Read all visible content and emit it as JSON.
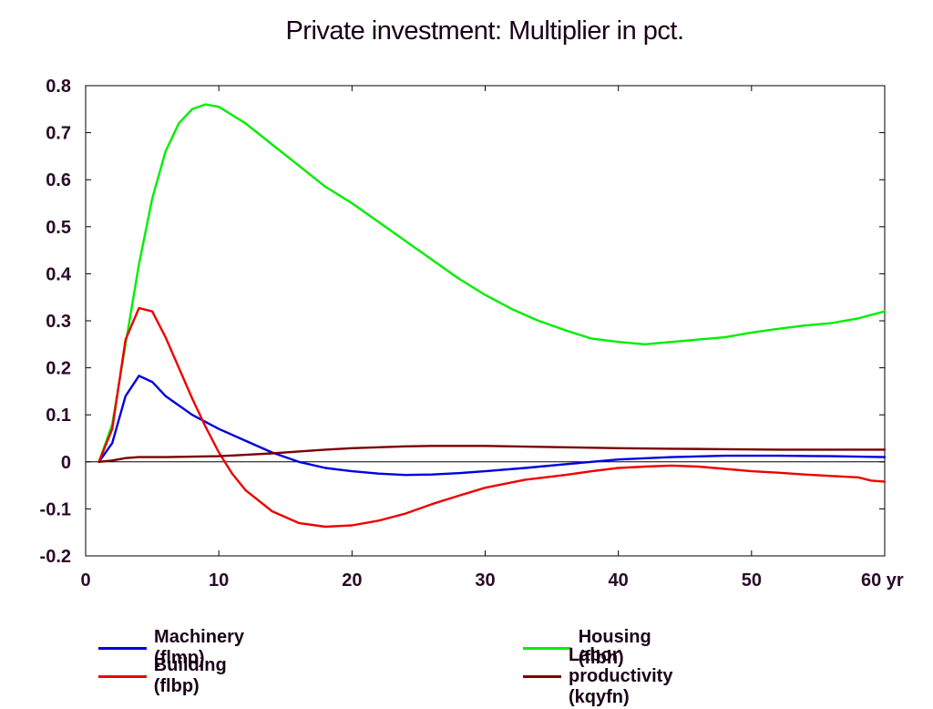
{
  "chart_data": {
    "type": "line",
    "title": "Private investment: Multiplier in pct.",
    "xlabel": "",
    "ylabel": "",
    "x_unit_label": "yr",
    "xlim": [
      0,
      60
    ],
    "ylim": [
      -0.2,
      0.8
    ],
    "x_ticks": [
      0,
      10,
      20,
      30,
      40,
      50,
      60
    ],
    "x_tick_labels": [
      "0",
      "10",
      "20",
      "30",
      "40",
      "50",
      "60 yr"
    ],
    "y_ticks": [
      -0.2,
      -0.1,
      0,
      0.1,
      0.2,
      0.3,
      0.4,
      0.5,
      0.6,
      0.7,
      0.8
    ],
    "y_tick_labels": [
      "-0.2",
      "-0.1",
      "0",
      "0.1",
      "0.2",
      "0.3",
      "0.4",
      "0.5",
      "0.6",
      "0.7",
      "0.8"
    ],
    "grid": false,
    "legend_position": "bottom",
    "series": [
      {
        "name": "Machinery (flmp)",
        "color": "#0000dd",
        "x": [
          1,
          2,
          3,
          4,
          5,
          6,
          7,
          8,
          10,
          12,
          14,
          16,
          18,
          20,
          22,
          24,
          26,
          28,
          30,
          33,
          36,
          40,
          44,
          48,
          52,
          56,
          60
        ],
        "values": [
          0,
          0.04,
          0.14,
          0.183,
          0.17,
          0.14,
          0.12,
          0.1,
          0.07,
          0.045,
          0.02,
          0.0,
          -0.013,
          -0.02,
          -0.025,
          -0.028,
          -0.027,
          -0.024,
          -0.02,
          -0.013,
          -0.005,
          0.005,
          0.01,
          0.013,
          0.013,
          0.012,
          0.01
        ]
      },
      {
        "name": "Housing (flbh)",
        "color": "#00ee00",
        "x": [
          1,
          2,
          3,
          4,
          5,
          6,
          7,
          8,
          9,
          10,
          12,
          14,
          16,
          18,
          20,
          22,
          24,
          26,
          28,
          30,
          32,
          34,
          36,
          38,
          40,
          42,
          44,
          46,
          48,
          50,
          52,
          54,
          56,
          58,
          60
        ],
        "values": [
          0,
          0.08,
          0.25,
          0.42,
          0.56,
          0.66,
          0.72,
          0.75,
          0.76,
          0.755,
          0.72,
          0.675,
          0.63,
          0.585,
          0.55,
          0.51,
          0.47,
          0.43,
          0.39,
          0.355,
          0.325,
          0.3,
          0.28,
          0.262,
          0.255,
          0.25,
          0.255,
          0.26,
          0.265,
          0.275,
          0.283,
          0.29,
          0.295,
          0.305,
          0.32
        ]
      },
      {
        "name": "Building (flbp)",
        "color": "#ee0000",
        "x": [
          1,
          2,
          3,
          4,
          5,
          6,
          7,
          8,
          9,
          10,
          11,
          12,
          14,
          16,
          18,
          20,
          22,
          24,
          26,
          28,
          30,
          33,
          36,
          38,
          40,
          42,
          44,
          46,
          48,
          50,
          52,
          54,
          56,
          58,
          59,
          60
        ],
        "values": [
          0,
          0.07,
          0.26,
          0.327,
          0.32,
          0.265,
          0.2,
          0.135,
          0.075,
          0.02,
          -0.025,
          -0.06,
          -0.105,
          -0.13,
          -0.138,
          -0.135,
          -0.125,
          -0.11,
          -0.09,
          -0.072,
          -0.055,
          -0.038,
          -0.028,
          -0.02,
          -0.013,
          -0.01,
          -0.008,
          -0.01,
          -0.015,
          -0.02,
          -0.023,
          -0.027,
          -0.03,
          -0.033,
          -0.04,
          -0.042
        ]
      },
      {
        "name": "Labor productivity (kqyfn)",
        "color": "#7a0000",
        "x": [
          1,
          2,
          3,
          4,
          6,
          8,
          10,
          12,
          14,
          16,
          18,
          20,
          22,
          24,
          26,
          28,
          30,
          32,
          34,
          36,
          38,
          40,
          44,
          48,
          52,
          56,
          60
        ],
        "values": [
          0,
          0.003,
          0.008,
          0.01,
          0.01,
          0.011,
          0.012,
          0.015,
          0.018,
          0.022,
          0.026,
          0.029,
          0.031,
          0.033,
          0.034,
          0.034,
          0.034,
          0.033,
          0.032,
          0.031,
          0.03,
          0.029,
          0.028,
          0.027,
          0.026,
          0.026,
          0.026
        ]
      }
    ]
  }
}
